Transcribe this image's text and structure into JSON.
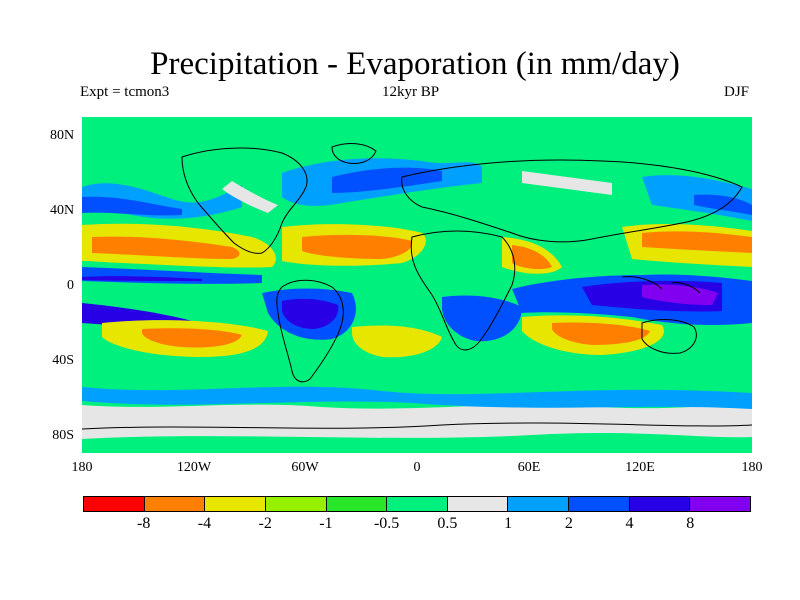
{
  "title": "Precipitation - Evaporation (in mm/day)",
  "subtitle_left": "Expt = tcmon3",
  "subtitle_center": "12kyr BP",
  "subtitle_right": "DJF",
  "lat_labels": [
    "80N",
    "40N",
    "0",
    "40S",
    "80S"
  ],
  "lon_labels": [
    "180",
    "120W",
    "60W",
    "0",
    "60E",
    "120E",
    "180"
  ],
  "colorbar": {
    "colors": [
      "#ff0000",
      "#ff8000",
      "#e6e600",
      "#96f000",
      "#28e628",
      "#00f07d",
      "#e6e6e6",
      "#00a0ff",
      "#0050ff",
      "#2800e6",
      "#8200f0"
    ],
    "labels": [
      "-8",
      "-4",
      "-2",
      "-1",
      "-0.5",
      "0.5",
      "1",
      "2",
      "4",
      "8"
    ]
  }
}
